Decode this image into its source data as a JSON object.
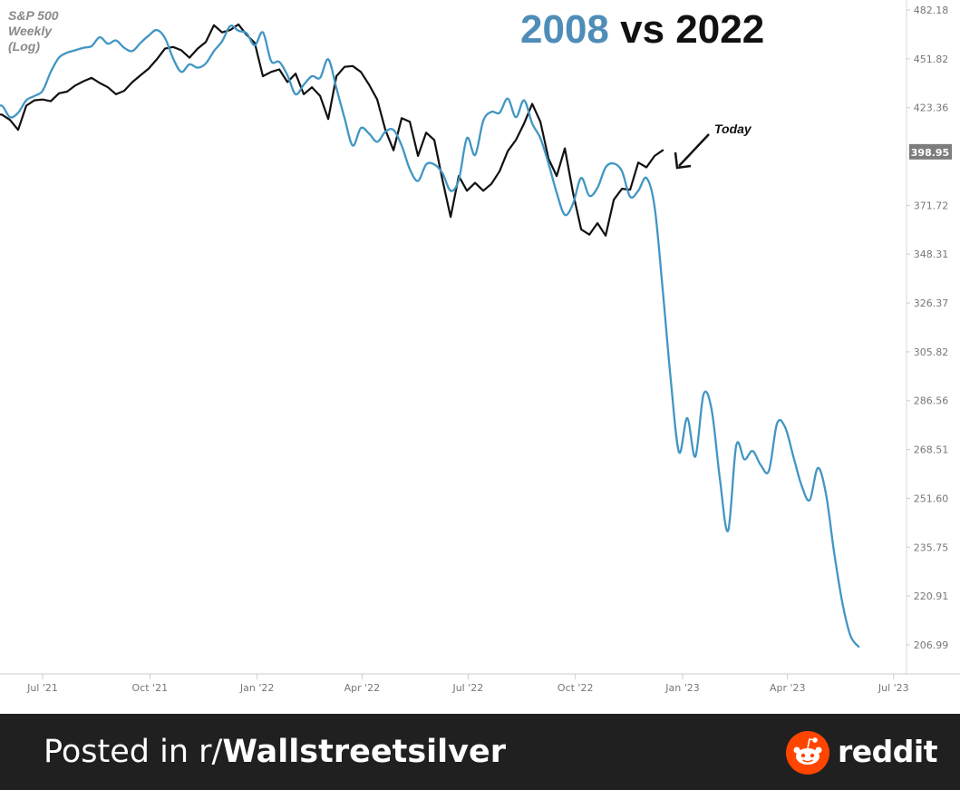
{
  "chart_data": {
    "type": "line",
    "title_parts": [
      {
        "text": "2008",
        "color": "#4e8db8"
      },
      {
        "text": " vs ",
        "color": "#111111"
      },
      {
        "text": "2022",
        "color": "#111111"
      }
    ],
    "subtitle_lines": [
      "S&P 500",
      "Weekly",
      "(Log)"
    ],
    "y_scale": "log",
    "y_ticks": [
      "482.18",
      "451.82",
      "423.36",
      "398.95",
      "371.72",
      "348.31",
      "326.37",
      "305.82",
      "286.56",
      "268.51",
      "251.60",
      "235.75",
      "220.91",
      "206.99"
    ],
    "y_highlight": "398.95",
    "x_ticks": [
      "Jul '21",
      "Oct '21",
      "Jan '22",
      "Apr '22",
      "Jul '22",
      "Oct '22",
      "Jan '23",
      "Apr '23",
      "Jul '23"
    ],
    "grid": false,
    "series": [
      {
        "color": "#111111",
        "x": [
          "2021-05-20",
          "2021-05-27",
          "2021-06-03",
          "2021-06-10",
          "2021-06-17",
          "2021-06-24",
          "2021-07-01",
          "2021-07-08",
          "2021-07-15",
          "2021-07-22",
          "2021-07-29",
          "2021-08-05",
          "2021-08-12",
          "2021-08-19",
          "2021-08-26",
          "2021-09-02",
          "2021-09-09",
          "2021-09-16",
          "2021-09-23",
          "2021-09-30",
          "2021-10-07",
          "2021-10-14",
          "2021-10-21",
          "2021-10-28",
          "2021-11-04",
          "2021-11-11",
          "2021-11-18",
          "2021-11-25",
          "2021-12-02",
          "2021-12-09",
          "2021-12-16",
          "2021-12-23",
          "2021-12-30",
          "2022-01-06",
          "2022-01-13",
          "2022-01-20",
          "2022-01-27",
          "2022-02-03",
          "2022-02-10",
          "2022-02-17",
          "2022-02-24",
          "2022-03-03",
          "2022-03-10",
          "2022-03-17",
          "2022-03-24",
          "2022-03-31",
          "2022-04-07",
          "2022-04-14",
          "2022-04-21",
          "2022-04-28",
          "2022-05-05",
          "2022-05-12",
          "2022-05-19",
          "2022-05-26",
          "2022-06-02",
          "2022-06-09",
          "2022-06-16",
          "2022-06-23",
          "2022-06-30",
          "2022-07-07",
          "2022-07-14",
          "2022-07-21",
          "2022-07-28",
          "2022-08-04",
          "2022-08-11",
          "2022-08-18",
          "2022-08-25",
          "2022-09-01",
          "2022-09-08",
          "2022-09-15",
          "2022-09-22",
          "2022-09-29",
          "2022-10-06",
          "2022-10-13",
          "2022-10-20",
          "2022-10-27",
          "2022-11-03",
          "2022-11-10",
          "2022-11-17",
          "2022-11-24",
          "2022-12-01",
          "2022-12-08",
          "2022-12-15"
        ],
        "y": [
          419.5,
          419.5,
          416.5,
          411.0,
          424.5,
          427.5,
          428.0,
          427.0,
          431.5,
          432.5,
          436.0,
          438.5,
          440.5,
          437.5,
          435.0,
          431.0,
          433.0,
          438.0,
          442.0,
          446.0,
          451.5,
          458.0,
          459.0,
          457.0,
          452.5,
          458.0,
          462.0,
          472.5,
          468.0,
          469.5,
          473.0,
          466.5,
          461.5,
          441.5,
          444.0,
          445.5,
          438.0,
          443.0,
          431.0,
          435.0,
          430.0,
          417.0,
          441.5,
          447.0,
          447.5,
          444.0,
          436.5,
          428.0,
          411.0,
          400.0,
          417.5,
          415.5,
          397.0,
          409.5,
          405.5,
          384.5,
          366.0,
          386.5,
          379.0,
          383.0,
          379.0,
          382.5,
          389.0,
          399.5,
          405.5,
          414.5,
          425.5,
          415.5,
          395.5,
          386.5,
          401.0,
          378.0,
          360.0,
          357.5,
          363.0,
          357.0,
          374.5,
          380.0,
          379.5,
          393.5,
          391.0,
          397.0,
          400.0
        ]
      },
      {
        "color": "#4196c3",
        "x": [
          "2021-05-20",
          "2021-05-27",
          "2021-06-03",
          "2021-06-10",
          "2021-06-17",
          "2021-06-24",
          "2021-07-01",
          "2021-07-08",
          "2021-07-15",
          "2021-07-22",
          "2021-07-29",
          "2021-08-05",
          "2021-08-12",
          "2021-08-19",
          "2021-08-26",
          "2021-09-02",
          "2021-09-09",
          "2021-09-16",
          "2021-09-23",
          "2021-09-30",
          "2021-10-07",
          "2021-10-14",
          "2021-10-21",
          "2021-10-28",
          "2021-11-04",
          "2021-11-11",
          "2021-11-18",
          "2021-11-25",
          "2021-12-02",
          "2021-12-09",
          "2021-12-16",
          "2021-12-23",
          "2021-12-30",
          "2022-01-06",
          "2022-01-13",
          "2022-01-20",
          "2022-01-27",
          "2022-02-03",
          "2022-02-10",
          "2022-02-17",
          "2022-02-24",
          "2022-03-03",
          "2022-03-10",
          "2022-03-17",
          "2022-03-24",
          "2022-03-31",
          "2022-04-07",
          "2022-04-14",
          "2022-04-21",
          "2022-04-28",
          "2022-05-05",
          "2022-05-12",
          "2022-05-19",
          "2022-05-26",
          "2022-06-02",
          "2022-06-09",
          "2022-06-16",
          "2022-06-23",
          "2022-06-30",
          "2022-07-07",
          "2022-07-14",
          "2022-07-21",
          "2022-07-28",
          "2022-08-04",
          "2022-08-11",
          "2022-08-18",
          "2022-08-25",
          "2022-09-01",
          "2022-09-08",
          "2022-09-15",
          "2022-09-22",
          "2022-09-29",
          "2022-10-06",
          "2022-10-13",
          "2022-10-20",
          "2022-10-27",
          "2022-11-03",
          "2022-11-10",
          "2022-11-17",
          "2022-11-24",
          "2022-12-01",
          "2022-12-08",
          "2022-12-15",
          "2022-12-22",
          "2022-12-29",
          "2023-01-05",
          "2023-01-12",
          "2023-01-19",
          "2023-01-26",
          "2023-02-02",
          "2023-02-09",
          "2023-02-16",
          "2023-02-23",
          "2023-03-02",
          "2023-03-09",
          "2023-03-16",
          "2023-03-23",
          "2023-03-30",
          "2023-04-06",
          "2023-04-13",
          "2023-04-20",
          "2023-04-27",
          "2023-05-04",
          "2023-05-11",
          "2023-05-18",
          "2023-05-25",
          "2023-06-01"
        ],
        "y": [
          422.0,
          424.5,
          418.0,
          420.5,
          427.5,
          430.0,
          433.0,
          444.0,
          452.5,
          455.5,
          457.0,
          458.5,
          459.5,
          465.0,
          461.0,
          463.0,
          458.5,
          456.5,
          461.5,
          466.0,
          469.5,
          464.5,
          452.0,
          444.0,
          448.5,
          446.5,
          449.0,
          456.5,
          462.5,
          472.0,
          469.0,
          467.5,
          460.0,
          468.0,
          450.5,
          450.0,
          442.0,
          431.0,
          436.5,
          441.5,
          440.5,
          451.5,
          434.5,
          417.5,
          402.5,
          412.0,
          409.0,
          404.5,
          410.0,
          411.0,
          402.5,
          390.0,
          384.0,
          392.5,
          392.5,
          388.0,
          379.0,
          384.5,
          406.5,
          397.5,
          416.0,
          421.0,
          420.5,
          428.5,
          418.0,
          427.5,
          414.5,
          406.5,
          393.0,
          378.0,
          367.0,
          372.5,
          385.5,
          376.5,
          380.5,
          391.0,
          393.0,
          389.0,
          376.0,
          379.0,
          385.5,
          371.0,
          332.0,
          294.0,
          267.5,
          280.0,
          266.0,
          289.0,
          283.0,
          258.0,
          241.0,
          270.0,
          265.0,
          268.0,
          263.0,
          261.0,
          278.0,
          276.5,
          266.0,
          256.0,
          251.0,
          262.0,
          253.0,
          234.0,
          219.0,
          209.5,
          206.5
        ]
      }
    ],
    "annotations": [
      {
        "text": "Today"
      }
    ]
  },
  "footer": {
    "prefix": "Posted in r/",
    "community": "Wallstreetsilver",
    "brand": "reddit",
    "background": "#202020",
    "logo_color": "#ff4500"
  }
}
